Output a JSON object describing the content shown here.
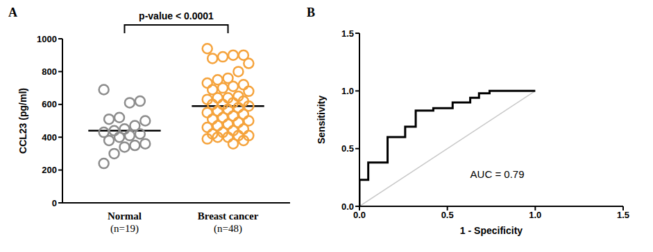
{
  "chart_data": [
    {
      "type": "scatter",
      "title": "A",
      "annotation": "p-value < 0.0001",
      "y_label": "CCL23 (pg/ml)",
      "categories": [
        "Normal (n=19)",
        "Breast cancer (n=48)"
      ],
      "colors": [
        "#8c8c8c",
        "#f5a33c"
      ],
      "marker": "open_circle",
      "values": [
        [
          690,
          620,
          610,
          520,
          510,
          500,
          470,
          450,
          440,
          430,
          420,
          410,
          400,
          380,
          360,
          350,
          340,
          300,
          240
        ],
        [
          940,
          900,
          900,
          890,
          880,
          850,
          800,
          760,
          750,
          730,
          720,
          710,
          700,
          690,
          680,
          650,
          640,
          640,
          630,
          620,
          610,
          600,
          600,
          590,
          580,
          570,
          560,
          550,
          540,
          530,
          520,
          510,
          500,
          490,
          480,
          470,
          460,
          450,
          440,
          430,
          420,
          410,
          410,
          400,
          400,
          390,
          380,
          360
        ]
      ],
      "means": [
        440,
        590
      ],
      "ylim": [
        0,
        1000
      ],
      "yticks": [
        0,
        200,
        400,
        600,
        800,
        1000
      ]
    },
    {
      "type": "line",
      "title": "B",
      "x_label": "1 - Specificity",
      "y_label": "Sensitivity",
      "annotation": "AUC = 0.79",
      "xlim": [
        0,
        1.5
      ],
      "ylim": [
        0,
        1.5
      ],
      "xticks": [
        {
          "value": 0,
          "label": "0.0"
        },
        {
          "value": 0.5,
          "label": "0.5"
        },
        {
          "value": 1,
          "label": "1.0"
        },
        {
          "value": 1.5,
          "label": "1.5"
        }
      ],
      "yticks": [
        {
          "value": 0,
          "label": "0.0"
        },
        {
          "value": 0.5,
          "label": "0.5"
        },
        {
          "value": 1,
          "label": "1.0"
        },
        {
          "value": 1.5,
          "label": "1.5"
        }
      ],
      "series": [
        {
          "color": "#000000",
          "x": [
            0,
            0,
            0.05,
            0.05,
            0.16,
            0.16,
            0.26,
            0.26,
            0.32,
            0.32,
            0.42,
            0.42,
            0.53,
            0.53,
            0.63,
            0.63,
            0.68,
            0.68,
            0.74,
            0.74,
            1
          ],
          "values": [
            0,
            0.23,
            0.23,
            0.38,
            0.38,
            0.6,
            0.6,
            0.69,
            0.69,
            0.83,
            0.83,
            0.85,
            0.85,
            0.9,
            0.9,
            0.94,
            0.94,
            0.98,
            0.98,
            1,
            1
          ]
        },
        {
          "color": "#c8c8c8",
          "x": [
            0,
            1
          ],
          "values": [
            0,
            1
          ]
        }
      ]
    }
  ]
}
